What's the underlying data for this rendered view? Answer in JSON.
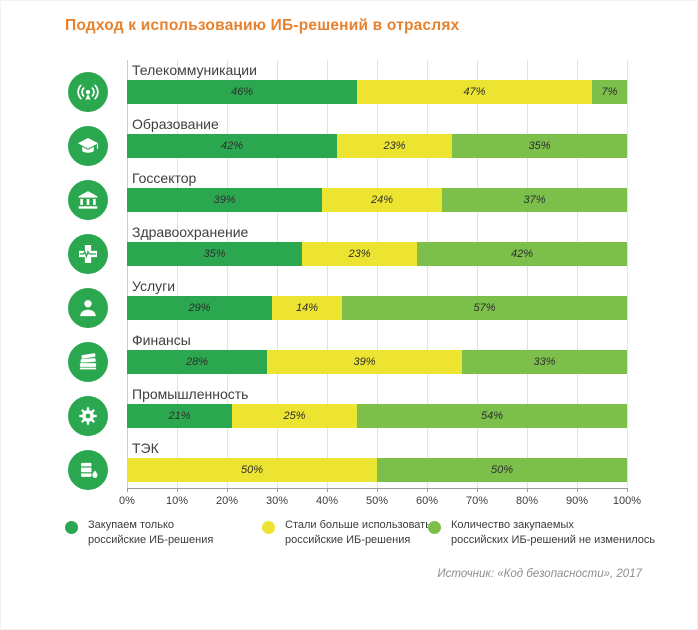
{
  "title": "Подход к использованию ИБ-решений в отраслях",
  "source": "Источник: «Код безопасности», 2017",
  "colors": {
    "title": "#e8812e",
    "buy_only": "#2ba84f",
    "use_more": "#ece431",
    "unchanged": "#7cbf4b",
    "icon_circle": "#2ba84f"
  },
  "axis": {
    "ticks": [
      "0%",
      "10%",
      "20%",
      "30%",
      "40%",
      "50%",
      "60%",
      "70%",
      "80%",
      "90%",
      "100%"
    ]
  },
  "legend": [
    {
      "label": "Закупаем только\nроссийские ИБ-решения",
      "color_key": "buy_only"
    },
    {
      "label": "Стали больше использовать\nроссийские ИБ-решения",
      "color_key": "use_more"
    },
    {
      "label": "Количество закупаемых\nроссийских ИБ-решений не изменилось",
      "color_key": "unchanged"
    }
  ],
  "icons": [
    "telecom-icon",
    "education-icon",
    "government-icon",
    "healthcare-icon",
    "services-icon",
    "finance-icon",
    "industry-icon",
    "energy-icon"
  ],
  "chart_data": {
    "type": "bar",
    "orientation": "horizontal",
    "stacked": true,
    "title": "Подход к использованию ИБ-решений в отраслях",
    "unit": "%",
    "xlim": [
      0,
      100
    ],
    "grid": true,
    "legend_position": "bottom",
    "categories": [
      "Телекоммуникации",
      "Образование",
      "Госсектор",
      "Здравоохранение",
      "Услуги",
      "Финансы",
      "Промышленность",
      "ТЭК"
    ],
    "series": [
      {
        "name": "Закупаем только российские ИБ-решения",
        "color_key": "buy_only",
        "values": [
          46,
          42,
          39,
          35,
          29,
          28,
          21,
          0
        ]
      },
      {
        "name": "Стали больше использовать российские ИБ-решения",
        "color_key": "use_more",
        "values": [
          47,
          23,
          24,
          23,
          14,
          39,
          25,
          50
        ]
      },
      {
        "name": "Количество закупаемых российских ИБ-решений не изменилось",
        "color_key": "unchanged",
        "values": [
          7,
          35,
          37,
          42,
          57,
          33,
          54,
          50
        ]
      }
    ]
  }
}
